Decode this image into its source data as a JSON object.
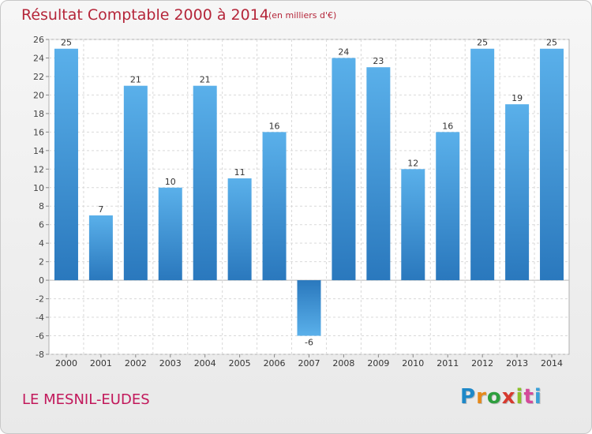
{
  "chart_data": {
    "type": "bar",
    "title": "Résultat Comptable 2000 à 2014",
    "subtitle": "(en milliers d'€)",
    "categories": [
      "2000",
      "2001",
      "2002",
      "2003",
      "2004",
      "2005",
      "2006",
      "2007",
      "2008",
      "2009",
      "2010",
      "2011",
      "2012",
      "2013",
      "2014"
    ],
    "values": [
      25,
      7,
      21,
      10,
      21,
      11,
      16,
      -6,
      24,
      23,
      12,
      16,
      25,
      19,
      25
    ],
    "ylim": [
      -8,
      26
    ],
    "yticks": [
      -8,
      -6,
      -4,
      -2,
      0,
      2,
      4,
      6,
      8,
      10,
      12,
      14,
      16,
      18,
      20,
      22,
      24,
      26
    ],
    "xlabel": "",
    "ylabel": "",
    "grid": true,
    "bar_color": "#4a9fe0"
  },
  "footer": {
    "commune": "LE MESNIL-EUDES",
    "logo": {
      "text": "Proxiti",
      "letters": [
        "P",
        "r",
        "o",
        "x",
        "i",
        "t",
        "i"
      ],
      "colors": [
        "#1e88c8",
        "#e6891a",
        "#2e9e3e",
        "#d63a2f",
        "#8bbf2a",
        "#d44a9a",
        "#3aa0d8"
      ]
    }
  }
}
